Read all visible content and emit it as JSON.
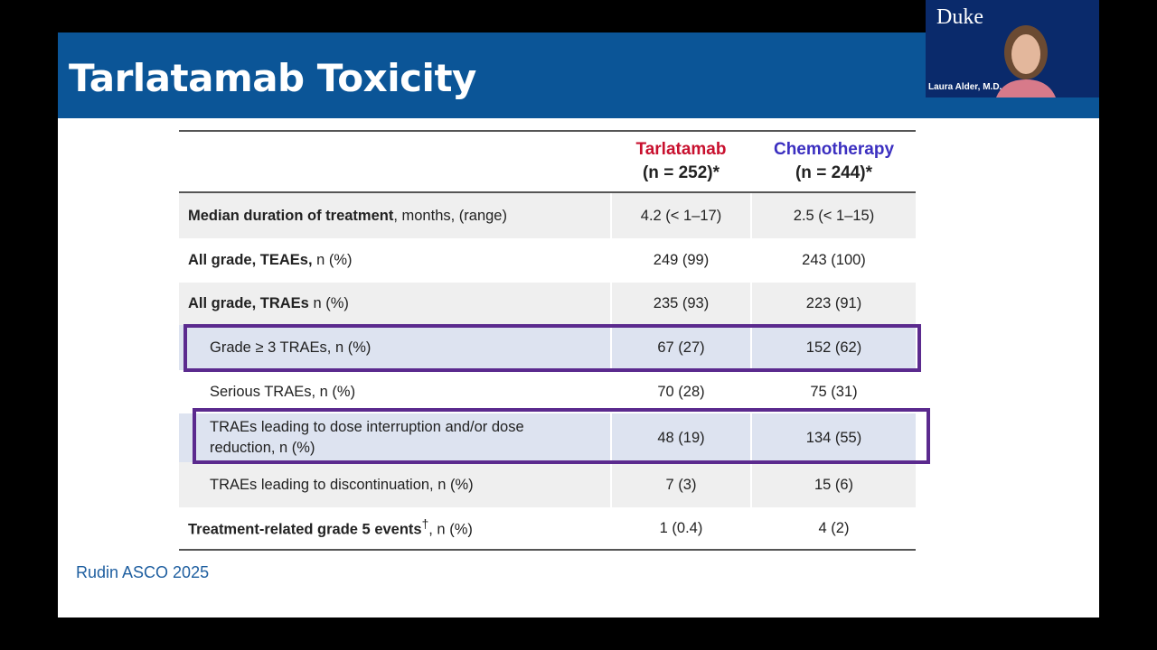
{
  "slide": {
    "title": "Tarlatamab Toxicity",
    "citation": "Rudin ASCO 2025"
  },
  "table": {
    "headers": [
      {
        "name": "Tarlatamab",
        "n": "(n = 252)*",
        "color": "#c8102e"
      },
      {
        "name": "Chemotherapy",
        "n": "(n = 244)*",
        "color": "#3b2fc0"
      }
    ],
    "rows": [
      {
        "bold": "Median duration of treatment",
        "rest": ", months, (range)",
        "v1": "4.2 (< 1–17)",
        "v2": "2.5 (< 1–15)"
      },
      {
        "bold": "All grade, TEAEs,",
        "rest": " n (%)",
        "v1": "249 (99)",
        "v2": "243 (100)"
      },
      {
        "bold": "All grade, TRAEs",
        "rest": " n (%)",
        "v1": "235 (93)",
        "v2": "223 (91)"
      },
      {
        "bold": "",
        "rest": "Grade ≥ 3 TRAEs, n (%)",
        "v1": "67 (27)",
        "v2": "152 (62)",
        "highlighted": true
      },
      {
        "bold": "",
        "rest": "Serious TRAEs, n (%)",
        "v1": "70 (28)",
        "v2": "75 (31)"
      },
      {
        "bold": "",
        "rest": "TRAEs leading to dose interruption and/or dose reduction, n (%)",
        "v1": "48 (19)",
        "v2": "134 (55)",
        "highlighted": true
      },
      {
        "bold": "",
        "rest": "TRAEs leading to discontinuation, n (%)",
        "v1": "7 (3)",
        "v2": "15 (6)"
      },
      {
        "bold": "Treatment-related grade 5 events",
        "sup": "†",
        "rest": ", n (%)",
        "v1": "1 (0.4)",
        "v2": "4 (2)"
      }
    ]
  },
  "webcam": {
    "logo": "Duke",
    "name": "Laura Alder, M.D."
  }
}
